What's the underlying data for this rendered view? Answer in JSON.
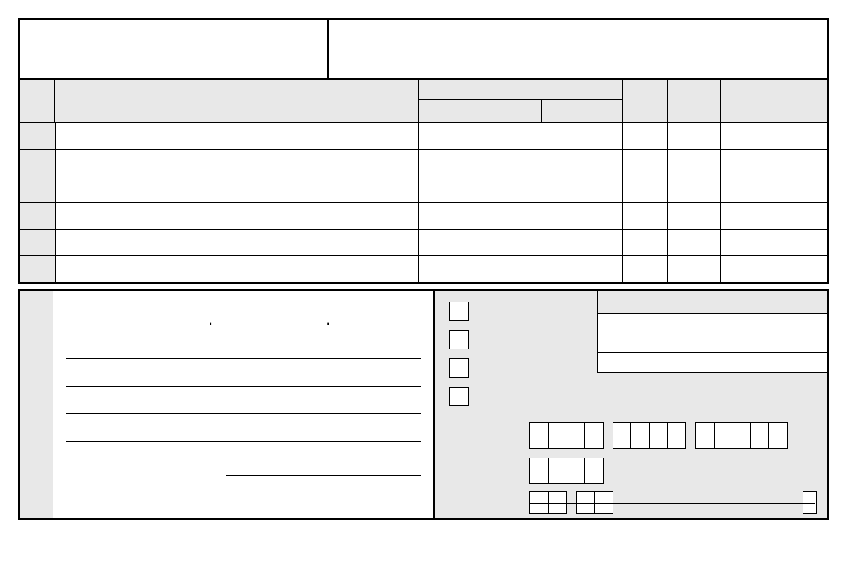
{
  "palette": {
    "bg": "#ffffff",
    "shade": "#e8e8e8",
    "line": "#000000"
  },
  "top": {
    "left": "",
    "right": ""
  },
  "grid": {
    "header": {
      "a": "",
      "b": "",
      "c_top": "",
      "c_left": "",
      "c_right": "",
      "d": "",
      "e": "",
      "f": ""
    },
    "rows": [
      {
        "a": "",
        "b": "",
        "c": "",
        "d": "",
        "e": "",
        "f": ""
      },
      {
        "a": "",
        "b": "",
        "c": "",
        "d": "",
        "e": "",
        "f": ""
      },
      {
        "a": "",
        "b": "",
        "c": "",
        "d": "",
        "e": "",
        "f": ""
      },
      {
        "a": "",
        "b": "",
        "c": "",
        "d": "",
        "e": "",
        "f": ""
      },
      {
        "a": "",
        "b": "",
        "c": "",
        "d": "",
        "e": "",
        "f": ""
      },
      {
        "a": "",
        "b": "",
        "c": "",
        "d": "",
        "e": "",
        "f": ""
      }
    ]
  },
  "cert": {
    "dots": ".     .",
    "lines": [
      "",
      "",
      "",
      ""
    ],
    "signature": ""
  },
  "right": {
    "checkboxes": [
      "",
      "",
      "",
      ""
    ],
    "mini": {
      "header": "",
      "rows": [
        "",
        "",
        ""
      ]
    },
    "box_groups_1": [
      4,
      4,
      5,
      4
    ],
    "box_groups_2": {
      "pair1": 2,
      "pair2": 2,
      "trailing_small": 1
    },
    "signature": ""
  }
}
